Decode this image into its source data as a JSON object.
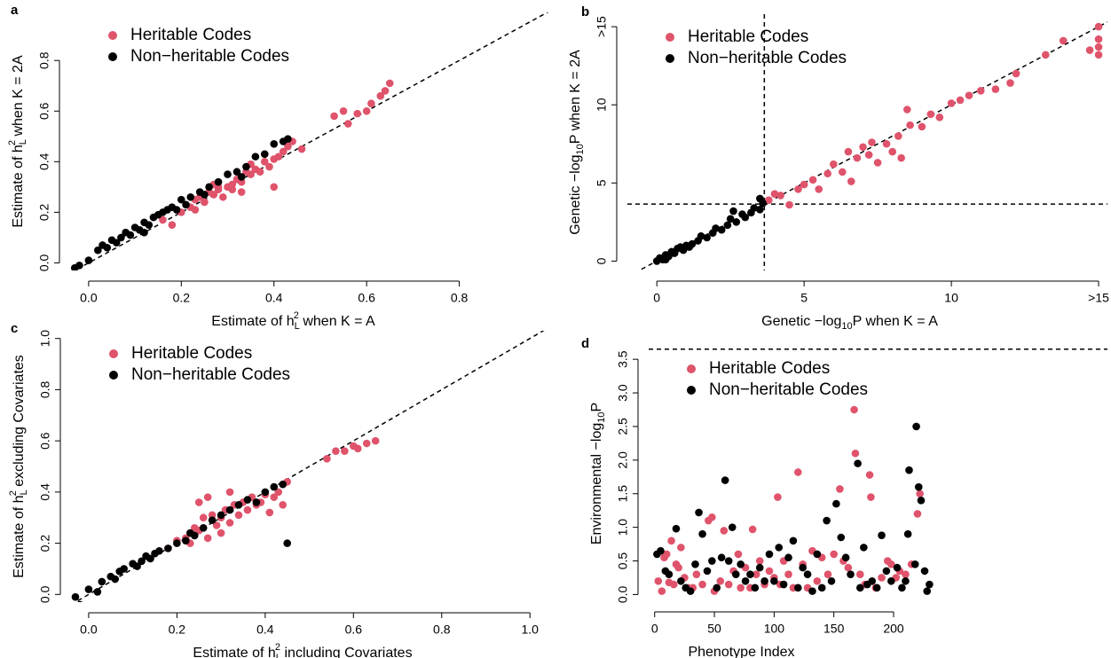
{
  "chart_data": [
    {
      "type": "scatter",
      "label": "a",
      "legend": "topleft",
      "identity_line": true,
      "xlabel": [
        {
          "text": "Estimate of h"
        },
        {
          "text": "L",
          "pos": "sub"
        },
        {
          "text": "2",
          "pos": "sup"
        },
        {
          "text": " when K = A"
        }
      ],
      "ylabel": [
        {
          "text": "Estimate of h"
        },
        {
          "text": "L",
          "pos": "sub"
        },
        {
          "text": "2",
          "pos": "sup"
        },
        {
          "text": " when K = 2A"
        }
      ],
      "xlim": [
        -0.04,
        1.0
      ],
      "ylim": [
        -0.03,
        0.99
      ],
      "xticks": [
        {
          "value": 0,
          "label": "0.0"
        },
        {
          "value": 0.2,
          "label": "0.2"
        },
        {
          "value": 0.4,
          "label": "0.4"
        },
        {
          "value": 0.6,
          "label": "0.6"
        },
        {
          "value": 0.8,
          "label": "0.8"
        }
      ],
      "yticks": [
        {
          "value": 0,
          "label": "0.0"
        },
        {
          "value": 0.2,
          "label": "0.2"
        },
        {
          "value": 0.4,
          "label": "0.4"
        },
        {
          "value": 0.6,
          "label": "0.6"
        },
        {
          "value": 0.8,
          "label": "0.8"
        }
      ],
      "series": [
        {
          "name": "Heritable Codes",
          "color": "#DF536B",
          "x": [
            0.16,
            0.18,
            0.2,
            0.22,
            0.23,
            0.24,
            0.25,
            0.26,
            0.27,
            0.28,
            0.28,
            0.29,
            0.3,
            0.31,
            0.32,
            0.33,
            0.33,
            0.34,
            0.35,
            0.36,
            0.37,
            0.38,
            0.38,
            0.39,
            0.4,
            0.4,
            0.41,
            0.42,
            0.43,
            0.44,
            0.46,
            0.53,
            0.55,
            0.56,
            0.58,
            0.6,
            0.61,
            0.63,
            0.64,
            0.65,
            0.23,
            0.35,
            0.31,
            0.27
          ],
          "values": [
            0.17,
            0.15,
            0.2,
            0.22,
            0.25,
            0.26,
            0.24,
            0.28,
            0.27,
            0.29,
            0.3,
            0.26,
            0.3,
            0.31,
            0.33,
            0.32,
            0.28,
            0.36,
            0.35,
            0.37,
            0.36,
            0.4,
            0.43,
            0.38,
            0.41,
            0.3,
            0.42,
            0.44,
            0.46,
            0.48,
            0.45,
            0.58,
            0.6,
            0.55,
            0.59,
            0.6,
            0.63,
            0.66,
            0.68,
            0.71,
            0.21,
            0.39,
            0.29,
            0.31
          ]
        },
        {
          "name": "Non−heritable Codes",
          "color": "#000000",
          "x": [
            -0.03,
            -0.02,
            0.0,
            0.02,
            0.03,
            0.04,
            0.05,
            0.06,
            0.07,
            0.08,
            0.09,
            0.1,
            0.11,
            0.12,
            0.13,
            0.14,
            0.15,
            0.16,
            0.17,
            0.18,
            0.19,
            0.2,
            0.21,
            0.22,
            0.24,
            0.26,
            0.28,
            0.3,
            0.32,
            0.34,
            0.36,
            0.38,
            0.4,
            0.42,
            0.43,
            0.12,
            0.25,
            0.33
          ],
          "values": [
            -0.02,
            -0.01,
            0.01,
            0.05,
            0.07,
            0.06,
            0.09,
            0.08,
            0.1,
            0.12,
            0.11,
            0.14,
            0.13,
            0.16,
            0.15,
            0.18,
            0.19,
            0.2,
            0.21,
            0.22,
            0.21,
            0.25,
            0.23,
            0.26,
            0.28,
            0.3,
            0.32,
            0.35,
            0.36,
            0.38,
            0.42,
            0.43,
            0.47,
            0.48,
            0.49,
            0.12,
            0.27,
            0.34
          ]
        }
      ]
    },
    {
      "type": "scatter",
      "label": "b",
      "legend": "topleft",
      "identity_line": true,
      "vline": 3.65,
      "hline": 3.65,
      "xlabel": [
        {
          "text": "Genetic −log"
        },
        {
          "text": "10",
          "pos": "sub"
        },
        {
          "text": "P when K = A"
        }
      ],
      "ylabel": [
        {
          "text": "Genetic −log"
        },
        {
          "text": "10",
          "pos": "sub"
        },
        {
          "text": "P when K = 2A"
        }
      ],
      "xlim": [
        -1,
        15.3
      ],
      "ylim": [
        -0.6,
        15.8
      ],
      "xticks": [
        0,
        5,
        10,
        {
          "value": 15,
          "label": ">15"
        }
      ],
      "yticks": [
        0,
        5,
        10,
        {
          "value": 15,
          "label": ">15"
        }
      ],
      "series": [
        {
          "name": "Heritable Codes",
          "color": "#DF536B",
          "x": [
            3.8,
            4.0,
            4.2,
            4.5,
            4.8,
            5.0,
            5.3,
            5.5,
            5.8,
            6.0,
            6.3,
            6.5,
            6.6,
            6.8,
            7.0,
            7.2,
            7.3,
            7.5,
            7.8,
            8.0,
            8.2,
            8.3,
            8.5,
            8.6,
            9.0,
            9.3,
            9.6,
            10.0,
            10.3,
            10.6,
            11.0,
            11.5,
            12.0,
            12.2,
            13.2,
            13.8,
            14.7,
            15,
            15,
            15,
            15
          ],
          "values": [
            3.9,
            4.3,
            4.2,
            3.6,
            4.6,
            4.9,
            5.2,
            4.6,
            5.6,
            6.2,
            5.7,
            7.0,
            5.1,
            6.6,
            7.3,
            6.8,
            7.6,
            6.3,
            7.5,
            7.0,
            8.0,
            6.6,
            9.7,
            8.7,
            8.6,
            9.4,
            9.2,
            10.1,
            10.3,
            10.6,
            10.9,
            11.0,
            11.4,
            12.0,
            13.2,
            14.1,
            13.5,
            15,
            14.2,
            13.2,
            13.7
          ]
        },
        {
          "name": "Non−heritable Codes",
          "color": "#000000",
          "x": [
            0,
            0.1,
            0.2,
            0.3,
            0.4,
            0.5,
            0.6,
            0.7,
            0.8,
            0.9,
            1.0,
            1.2,
            1.4,
            1.5,
            1.7,
            1.9,
            2.0,
            2.2,
            2.4,
            2.5,
            2.7,
            2.9,
            3.0,
            3.2,
            3.3,
            3.5,
            3.6,
            3.5,
            0.3,
            1.1,
            2.6
          ],
          "values": [
            0,
            0.2,
            0.1,
            0.4,
            0.3,
            0.6,
            0.5,
            0.8,
            0.9,
            0.7,
            1.0,
            1.1,
            1.3,
            1.6,
            1.5,
            1.8,
            2.1,
            2.0,
            2.3,
            2.7,
            2.5,
            3.0,
            2.8,
            3.1,
            3.4,
            3.3,
            3.7,
            4.0,
            0.1,
            0.9,
            3.2
          ]
        }
      ]
    },
    {
      "type": "scatter",
      "label": "c",
      "legend": "topleft",
      "identity_line": true,
      "xlabel": [
        {
          "text": "Estimate of h"
        },
        {
          "text": "L",
          "pos": "sub"
        },
        {
          "text": "2",
          "pos": "sup"
        },
        {
          "text": " including Covariates"
        }
      ],
      "ylabel": [
        {
          "text": "Estimate of h"
        },
        {
          "text": "L",
          "pos": "sub"
        },
        {
          "text": "2",
          "pos": "sup"
        },
        {
          "text": " excluding Covariates"
        }
      ],
      "xlim": [
        -0.04,
        1.09
      ],
      "ylim": [
        -0.03,
        1.03
      ],
      "xticks": [
        {
          "value": 0,
          "label": "0.0"
        },
        {
          "value": 0.2,
          "label": "0.2"
        },
        {
          "value": 0.4,
          "label": "0.4"
        },
        {
          "value": 0.6,
          "label": "0.6"
        },
        {
          "value": 0.8,
          "label": "0.8"
        },
        {
          "value": 1,
          "label": "1.0"
        }
      ],
      "yticks": [
        {
          "value": 0,
          "label": "0.0"
        },
        {
          "value": 0.2,
          "label": "0.2"
        },
        {
          "value": 0.4,
          "label": "0.4"
        },
        {
          "value": 0.6,
          "label": "0.6"
        },
        {
          "value": 0.8,
          "label": "0.8"
        },
        {
          "value": 1,
          "label": "1.0"
        }
      ],
      "series": [
        {
          "name": "Heritable Codes",
          "color": "#DF536B",
          "x": [
            0.18,
            0.2,
            0.22,
            0.23,
            0.24,
            0.25,
            0.26,
            0.27,
            0.28,
            0.29,
            0.3,
            0.3,
            0.31,
            0.32,
            0.33,
            0.34,
            0.35,
            0.36,
            0.37,
            0.38,
            0.39,
            0.4,
            0.41,
            0.42,
            0.43,
            0.44,
            0.45,
            0.27,
            0.25,
            0.32,
            0.54,
            0.56,
            0.58,
            0.6,
            0.61,
            0.63,
            0.65
          ],
          "values": [
            0.18,
            0.21,
            0.22,
            0.2,
            0.26,
            0.25,
            0.3,
            0.22,
            0.31,
            0.27,
            0.3,
            0.24,
            0.33,
            0.28,
            0.35,
            0.31,
            0.36,
            0.33,
            0.38,
            0.35,
            0.36,
            0.39,
            0.32,
            0.38,
            0.4,
            0.35,
            0.44,
            0.38,
            0.36,
            0.4,
            0.53,
            0.56,
            0.56,
            0.58,
            0.57,
            0.59,
            0.6
          ]
        },
        {
          "name": "Non−heritable Codes",
          "color": "#000000",
          "x": [
            -0.03,
            -0.02,
            0.0,
            0.02,
            0.03,
            0.05,
            0.06,
            0.07,
            0.08,
            0.1,
            0.11,
            0.12,
            0.13,
            0.14,
            0.15,
            0.16,
            0.18,
            0.2,
            0.22,
            0.24,
            0.26,
            0.28,
            0.3,
            0.32,
            0.34,
            0.36,
            0.38,
            0.4,
            0.42,
            0.44,
            0.45,
            0.23
          ],
          "values": [
            -0.01,
            -0.04,
            0.02,
            0.01,
            0.05,
            0.07,
            0.06,
            0.09,
            0.1,
            0.12,
            0.11,
            0.13,
            0.15,
            0.14,
            0.16,
            0.17,
            0.18,
            0.2,
            0.21,
            0.23,
            0.26,
            0.29,
            0.31,
            0.33,
            0.35,
            0.37,
            0.36,
            0.4,
            0.42,
            0.43,
            0.2,
            0.24
          ]
        }
      ]
    },
    {
      "type": "scatter",
      "label": "d",
      "legend": "topleft",
      "hline": 3.65,
      "xlabel": [
        {
          "text": "Phenotype Index"
        }
      ],
      "ylabel": [
        {
          "text": "Environmental −log"
        },
        {
          "text": "10",
          "pos": "sub"
        },
        {
          "text": "P"
        }
      ],
      "xlim": [
        -5,
        379
      ],
      "ylim": [
        -0.1,
        3.7
      ],
      "xticks": [
        0,
        50,
        100,
        150,
        200
      ],
      "yticks": [
        {
          "value": 0,
          "label": "0.0"
        },
        {
          "value": 0.5,
          "label": "0.5"
        },
        {
          "value": 1,
          "label": "1.0"
        },
        {
          "value": 1.5,
          "label": "1.5"
        },
        {
          "value": 2,
          "label": "2.0"
        },
        {
          "value": 2.5,
          "label": "2.5"
        },
        {
          "value": 3,
          "label": "3.0"
        },
        {
          "value": 3.5,
          "label": "3.5"
        }
      ],
      "series": [
        {
          "name": "Heritable Codes",
          "color": "#DF536B",
          "x": [
            3,
            6,
            8,
            10,
            12,
            14,
            16,
            18,
            20,
            22,
            25,
            28,
            32,
            35,
            40,
            45,
            48,
            50,
            55,
            58,
            62,
            66,
            70,
            72,
            76,
            80,
            82,
            85,
            88,
            92,
            96,
            100,
            103,
            105,
            108,
            112,
            116,
            120,
            124,
            128,
            132,
            136,
            140,
            145,
            150,
            155,
            158,
            162,
            167,
            168,
            172,
            176,
            180,
            181,
            185,
            190,
            195,
            198,
            202,
            205,
            210,
            215,
            220,
            222
          ],
          "values": [
            0.2,
            0.05,
            0.55,
            0.6,
            0.18,
            0.8,
            0.15,
            0.45,
            0.4,
            0.7,
            0.25,
            0.1,
            0.1,
            0.3,
            0.15,
            1.1,
            1.15,
            0.05,
            0.2,
            0.95,
            0.15,
            0.35,
            0.6,
            0.1,
            0.4,
            0.1,
            0.97,
            0.3,
            0.5,
            0.15,
            0.35,
            0.25,
            1.45,
            0.15,
            0.5,
            0.3,
            0.1,
            1.82,
            0.45,
            0.1,
            0.65,
            0.2,
            0.55,
            0.3,
            0.6,
            1.57,
            0.5,
            0.4,
            2.75,
            2.1,
            0.3,
            0.15,
            1.78,
            1.45,
            0.1,
            0.25,
            0.5,
            0.45,
            0.25,
            0.35,
            0.3,
            0.45,
            1.2,
            1.5
          ]
        },
        {
          "name": "Non−heritable Codes",
          "color": "#000000",
          "x": [
            2,
            5,
            9,
            12,
            18,
            22,
            26,
            30,
            34,
            37,
            40,
            44,
            48,
            52,
            56,
            59,
            62,
            65,
            68,
            72,
            76,
            80,
            84,
            88,
            92,
            96,
            100,
            104,
            108,
            112,
            116,
            120,
            124,
            128,
            132,
            136,
            140,
            144,
            148,
            152,
            156,
            160,
            164,
            170,
            172,
            175,
            178,
            182,
            186,
            190,
            194,
            198,
            203,
            207,
            210,
            212,
            213,
            218,
            219,
            221,
            223,
            226,
            228,
            230
          ],
          "values": [
            0.6,
            0.65,
            0.35,
            0.3,
            0.98,
            0.2,
            0.1,
            0.05,
            0.45,
            1.22,
            0.9,
            0.35,
            0.5,
            0.1,
            0.55,
            1.7,
            0.5,
            1.0,
            0.3,
            0.45,
            0.2,
            0.3,
            0.1,
            0.4,
            0.2,
            0.6,
            0.2,
            0.7,
            0.15,
            0.55,
            0.8,
            0.1,
            0.4,
            0.3,
            0.05,
            0.6,
            0.1,
            1.1,
            0.2,
            1.35,
            0.85,
            0.55,
            0.3,
            1.95,
            0.1,
            0.7,
            0.15,
            0.2,
            0.1,
            0.88,
            0.35,
            0.2,
            0.4,
            0.1,
            0.2,
            0.9,
            1.85,
            0.45,
            2.5,
            1.6,
            1.4,
            0.35,
            0.05,
            0.15
          ]
        }
      ]
    }
  ]
}
